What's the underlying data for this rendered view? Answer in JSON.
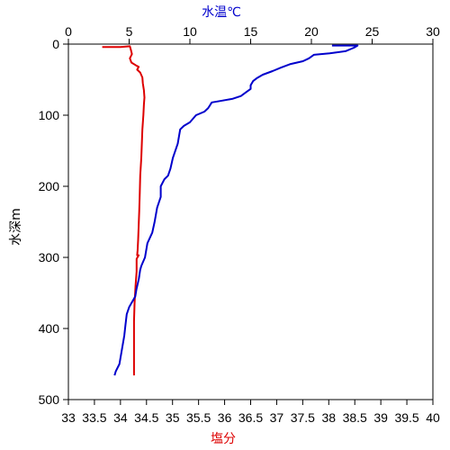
{
  "chart_data": {
    "type": "line",
    "title": "",
    "ylabel": "水深m",
    "ylim": [
      500,
      0
    ],
    "yticks": [
      "0",
      "100",
      "200",
      "300",
      "400",
      "500"
    ],
    "top_axis": {
      "label": "水温℃",
      "label_color": "#0000cc",
      "lim": [
        0,
        30
      ],
      "ticks": [
        "0",
        "5",
        "10",
        "15",
        "20",
        "25",
        "30"
      ]
    },
    "bottom_axis": {
      "label": "塩分",
      "label_color": "#dd0000",
      "lim": [
        33,
        40
      ],
      "ticks": [
        "33",
        "33.5",
        "34",
        "34.5",
        "35",
        "35.5",
        "36",
        "36.5",
        "37",
        "37.5",
        "38",
        "38.5",
        "39",
        "39.5",
        "40"
      ]
    },
    "grid": false,
    "series": [
      {
        "color": "#dd0000",
        "axis": "bottom",
        "points": [
          [
            33.65,
            4
          ],
          [
            34.0,
            4
          ],
          [
            34.18,
            3
          ],
          [
            34.2,
            8
          ],
          [
            34.22,
            14
          ],
          [
            34.18,
            20
          ],
          [
            34.21,
            26
          ],
          [
            34.3,
            30
          ],
          [
            34.35,
            32
          ],
          [
            34.32,
            36
          ],
          [
            34.38,
            40
          ],
          [
            34.42,
            47
          ],
          [
            34.43,
            55
          ],
          [
            34.45,
            65
          ],
          [
            34.46,
            75
          ],
          [
            34.45,
            85
          ],
          [
            34.44,
            100
          ],
          [
            34.42,
            120
          ],
          [
            34.41,
            140
          ],
          [
            34.4,
            160
          ],
          [
            34.38,
            185
          ],
          [
            34.37,
            210
          ],
          [
            34.36,
            235
          ],
          [
            34.35,
            255
          ],
          [
            34.34,
            275
          ],
          [
            34.33,
            290
          ],
          [
            34.32,
            297
          ],
          [
            34.35,
            297
          ],
          [
            34.31,
            302
          ],
          [
            34.31,
            320
          ],
          [
            34.29,
            340
          ],
          [
            34.27,
            365
          ],
          [
            34.26,
            390
          ],
          [
            34.26,
            420
          ],
          [
            34.26,
            450
          ],
          [
            34.26,
            466
          ]
        ]
      },
      {
        "color": "#0000cc",
        "axis": "top",
        "points": [
          [
            21.7,
            2
          ],
          [
            23.8,
            2
          ],
          [
            23.5,
            5
          ],
          [
            22.8,
            10
          ],
          [
            21.5,
            13
          ],
          [
            20.2,
            15
          ],
          [
            19.8,
            20
          ],
          [
            19.3,
            24
          ],
          [
            18.3,
            28
          ],
          [
            17.5,
            33
          ],
          [
            16.8,
            38
          ],
          [
            16.0,
            43
          ],
          [
            15.5,
            48
          ],
          [
            15.2,
            52
          ],
          [
            15.0,
            58
          ],
          [
            15.0,
            63
          ],
          [
            14.6,
            68
          ],
          [
            14.2,
            73
          ],
          [
            13.5,
            77
          ],
          [
            12.5,
            80
          ],
          [
            11.8,
            82
          ],
          [
            11.5,
            90
          ],
          [
            11.2,
            95
          ],
          [
            10.5,
            100
          ],
          [
            10.0,
            110
          ],
          [
            9.5,
            115
          ],
          [
            9.2,
            120
          ],
          [
            9.0,
            140
          ],
          [
            8.6,
            160
          ],
          [
            8.4,
            175
          ],
          [
            8.2,
            185
          ],
          [
            7.9,
            190
          ],
          [
            7.6,
            200
          ],
          [
            7.6,
            215
          ],
          [
            7.3,
            230
          ],
          [
            7.1,
            250
          ],
          [
            6.9,
            265
          ],
          [
            6.5,
            280
          ],
          [
            6.3,
            300
          ],
          [
            6.0,
            312
          ],
          [
            5.9,
            318
          ],
          [
            5.8,
            330
          ],
          [
            5.6,
            345
          ],
          [
            5.5,
            355
          ],
          [
            5.0,
            370
          ],
          [
            4.8,
            380
          ],
          [
            4.7,
            395
          ],
          [
            4.6,
            410
          ],
          [
            4.4,
            430
          ],
          [
            4.2,
            450
          ],
          [
            3.9,
            460
          ],
          [
            3.8,
            466
          ]
        ]
      }
    ]
  }
}
